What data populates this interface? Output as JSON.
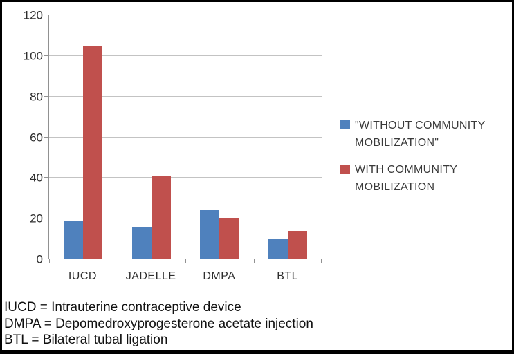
{
  "chart_data": {
    "type": "bar",
    "title": "",
    "xlabel": "",
    "ylabel": "",
    "categories": [
      "IUCD",
      "JADELLE",
      "DMPA",
      "BTL"
    ],
    "series": [
      {
        "name": "\"WITHOUT COMMUNITY MOBILIZATION\"",
        "color": "#4F81BD",
        "values": [
          19,
          16,
          24,
          10
        ]
      },
      {
        "name": "WITH COMMUNITY MOBILIZATION",
        "color": "#C0504D",
        "values": [
          105,
          41,
          20,
          14
        ]
      }
    ],
    "ylim": [
      0,
      120
    ],
    "ytick_step": 20,
    "yticks": [
      0,
      20,
      40,
      60,
      80,
      100,
      120
    ],
    "grid": true,
    "legend_position": "right"
  },
  "colors": {
    "series_without": "#4F81BD",
    "series_with": "#C0504D",
    "gridline": "#c3c3c3",
    "axis": "#919191",
    "frame_border": "#000000"
  },
  "footnotes": [
    "IUCD = Intrauterine contraceptive device",
    "DMPA = Depomedroxyprogesterone acetate injection",
    "BTL = Bilateral tubal ligation"
  ]
}
